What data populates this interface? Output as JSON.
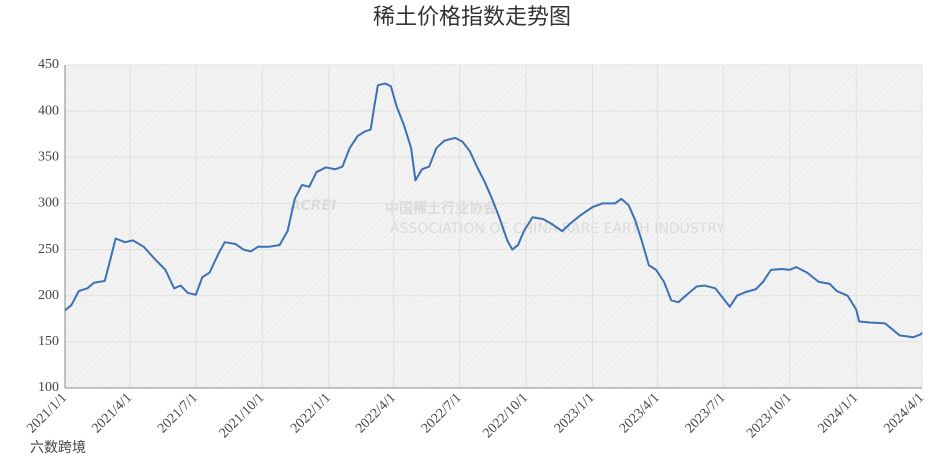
{
  "chart_data": {
    "type": "line",
    "title": "稀土价格指数走势图",
    "watermark": {
      "logo": "ACREI",
      "name": "中国稀土行业协会",
      "english": "ASSOCIATION OF CHINA RARE EARTH INDUSTRY",
      "corner": "六数跨境"
    },
    "x": [
      "2021/1/1",
      "2021/1/10",
      "2021/1/20",
      "2021/2/1",
      "2021/2/10",
      "2021/2/25",
      "2021/3/5",
      "2021/3/12",
      "2021/3/25",
      "2021/4/5",
      "2021/4/20",
      "2021/5/5",
      "2021/5/20",
      "2021/6/1",
      "2021/6/10",
      "2021/6/20",
      "2021/7/1",
      "2021/7/10",
      "2021/7/20",
      "2021/8/1",
      "2021/8/10",
      "2021/8/25",
      "2021/9/5",
      "2021/9/15",
      "2021/9/25",
      "2021/10/10",
      "2021/10/25",
      "2021/11/5",
      "2021/11/15",
      "2021/11/25",
      "2021/12/5",
      "2021/12/15",
      "2021/12/28",
      "2022/1/10",
      "2022/1/20",
      "2022/1/30",
      "2022/2/10",
      "2022/2/20",
      "2022/2/28",
      "2022/3/5",
      "2022/3/10",
      "2022/3/20",
      "2022/3/28",
      "2022/4/5",
      "2022/4/15",
      "2022/4/25",
      "2022/5/1",
      "2022/5/10",
      "2022/5/20",
      "2022/5/30",
      "2022/6/10",
      "2022/6/25",
      "2022/7/5",
      "2022/7/15",
      "2022/7/25",
      "2022/8/5",
      "2022/8/15",
      "2022/8/25",
      "2022/9/5",
      "2022/9/12",
      "2022/9/20",
      "2022/9/28",
      "2022/10/10",
      "2022/10/25",
      "2022/11/5",
      "2022/11/20",
      "2022/12/1",
      "2022/12/15",
      "2023/1/1",
      "2023/1/15",
      "2023/2/1",
      "2023/2/10",
      "2023/2/20",
      "2023/3/1",
      "2023/3/10",
      "2023/3/20",
      "2023/3/30",
      "2023/4/10",
      "2023/4/20",
      "2023/4/30",
      "2023/5/10",
      "2023/5/25",
      "2023/6/5",
      "2023/6/20",
      "2023/7/5",
      "2023/7/10",
      "2023/7/20",
      "2023/8/1",
      "2023/8/15",
      "2023/8/25",
      "2023/9/5",
      "2023/9/20",
      "2023/10/1",
      "2023/10/10",
      "2023/10/25",
      "2023/11/10",
      "2023/11/25",
      "2023/12/5",
      "2023/12/20",
      "2024/1/1",
      "2024/1/5",
      "2024/1/20",
      "2024/2/10",
      "2024/3/1",
      "2024/3/20",
      "2024/3/30",
      "2024/4/1"
    ],
    "series": [
      {
        "name": "稀土价格指数",
        "color": "#3d71b3",
        "values": [
          184,
          190,
          205,
          208,
          214,
          216,
          240,
          262,
          258,
          260,
          253,
          240,
          228,
          208,
          211,
          203,
          201,
          220,
          225,
          245,
          258,
          256,
          250,
          248,
          253,
          253,
          255,
          270,
          305,
          320,
          318,
          334,
          339,
          337,
          340,
          360,
          373,
          378,
          380,
          405,
          428,
          430,
          427,
          405,
          385,
          360,
          325,
          337,
          340,
          360,
          368,
          371,
          367,
          357,
          340,
          323,
          305,
          285,
          260,
          250,
          255,
          270,
          285,
          283,
          278,
          270,
          278,
          287,
          296,
          300,
          300,
          305,
          298,
          282,
          260,
          233,
          228,
          215,
          195,
          193,
          200,
          210,
          211,
          208,
          193,
          188,
          200,
          204,
          207,
          215,
          228,
          229,
          228,
          231,
          225,
          215,
          213,
          205,
          200,
          185,
          172,
          171,
          170,
          157,
          155,
          158,
          160
        ]
      }
    ],
    "xlim": [
      "2021/1/1",
      "2024/4/1"
    ],
    "xticks": [
      "2021/1/1",
      "2021/4/1",
      "2021/7/1",
      "2021/10/1",
      "2022/1/1",
      "2022/4/1",
      "2022/7/1",
      "2022/10/1",
      "2023/1/1",
      "2023/4/1",
      "2023/7/1",
      "2023/10/1",
      "2024/1/1",
      "2024/4/1"
    ],
    "ylim": [
      100,
      450
    ],
    "yticks": [
      100,
      150,
      200,
      250,
      300,
      350,
      400,
      450
    ],
    "grid": true
  }
}
